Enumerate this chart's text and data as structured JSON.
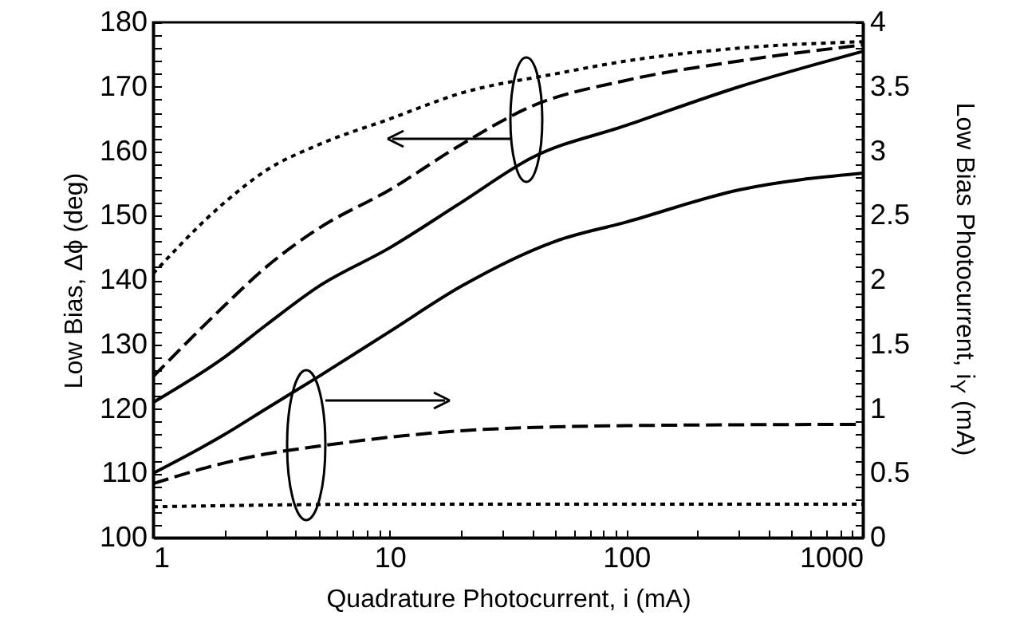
{
  "chart_data": {
    "type": "line",
    "xlabel": "Quadrature Photocurrent, i (mA)",
    "ylabel": "Low Bias, Δϕ (deg)",
    "y2label": "Low Bias Photocurrent, i$_{Y}$ (mA)",
    "log": "x",
    "legend": false,
    "marker": "none",
    "xlim": [
      1,
      1000
    ],
    "xticks": [
      1,
      {
        "value": 2,
        "label": null
      },
      {
        "value": 3,
        "label": null
      },
      {
        "value": 4,
        "label": null
      },
      {
        "value": 5,
        "label": null
      },
      {
        "value": 6,
        "label": null
      },
      {
        "value": 7,
        "label": null
      },
      {
        "value": 8,
        "label": null
      },
      {
        "value": 9,
        "label": null
      },
      10,
      {
        "value": 20,
        "label": null
      },
      {
        "value": 30,
        "label": null
      },
      {
        "value": 40,
        "label": null
      },
      {
        "value": 50,
        "label": null
      },
      {
        "value": 60,
        "label": null
      },
      {
        "value": 70,
        "label": null
      },
      {
        "value": 80,
        "label": null
      },
      {
        "value": 90,
        "label": null
      },
      100,
      {
        "value": 200,
        "label": null
      },
      {
        "value": 300,
        "label": null
      },
      {
        "value": 400,
        "label": null
      },
      {
        "value": 500,
        "label": null
      },
      {
        "value": 600,
        "label": null
      },
      {
        "value": 700,
        "label": null
      },
      {
        "value": 800,
        "label": null
      },
      {
        "value": 900,
        "label": null
      },
      1000
    ],
    "ylim": [
      100,
      180
    ],
    "yticks": [
      100,
      {
        "value": 102,
        "label": null
      },
      {
        "value": 104,
        "label": null
      },
      {
        "value": 106,
        "label": null
      },
      {
        "value": 108,
        "label": null
      },
      110,
      {
        "value": 112,
        "label": null
      },
      {
        "value": 114,
        "label": null
      },
      {
        "value": 116,
        "label": null
      },
      {
        "value": 118,
        "label": null
      },
      120,
      {
        "value": 122,
        "label": null
      },
      {
        "value": 124,
        "label": null
      },
      {
        "value": 126,
        "label": null
      },
      {
        "value": 128,
        "label": null
      },
      130,
      {
        "value": 132,
        "label": null
      },
      {
        "value": 134,
        "label": null
      },
      {
        "value": 136,
        "label": null
      },
      {
        "value": 138,
        "label": null
      },
      140,
      {
        "value": 142,
        "label": null
      },
      {
        "value": 144,
        "label": null
      },
      {
        "value": 146,
        "label": null
      },
      {
        "value": 148,
        "label": null
      },
      150,
      {
        "value": 152,
        "label": null
      },
      {
        "value": 154,
        "label": null
      },
      {
        "value": 156,
        "label": null
      },
      {
        "value": 158,
        "label": null
      },
      160,
      {
        "value": 162,
        "label": null
      },
      {
        "value": 164,
        "label": null
      },
      {
        "value": 166,
        "label": null
      },
      {
        "value": 168,
        "label": null
      },
      170,
      {
        "value": 172,
        "label": null
      },
      {
        "value": 174,
        "label": null
      },
      {
        "value": 176,
        "label": null
      },
      {
        "value": 178,
        "label": null
      },
      180
    ],
    "y2lim": [
      0,
      4
    ],
    "y2ticks": [
      0,
      {
        "value": 0.1,
        "label": null
      },
      {
        "value": 0.2,
        "label": null
      },
      {
        "value": 0.3,
        "label": null
      },
      {
        "value": 0.4,
        "label": null
      },
      0.5,
      {
        "value": 0.6,
        "label": null
      },
      {
        "value": 0.7,
        "label": null
      },
      {
        "value": 0.8,
        "label": null
      },
      {
        "value": 0.9,
        "label": null
      },
      1,
      {
        "value": 1.1,
        "label": null
      },
      {
        "value": 1.2,
        "label": null
      },
      {
        "value": 1.3,
        "label": null
      },
      {
        "value": 1.4,
        "label": null
      },
      1.5,
      {
        "value": 1.6,
        "label": null
      },
      {
        "value": 1.7,
        "label": null
      },
      {
        "value": 1.8,
        "label": null
      },
      {
        "value": 1.9,
        "label": null
      },
      2,
      {
        "value": 2.1,
        "label": null
      },
      {
        "value": 2.2,
        "label": null
      },
      {
        "value": 2.3,
        "label": null
      },
      {
        "value": 2.4,
        "label": null
      },
      2.5,
      {
        "value": 2.6,
        "label": null
      },
      {
        "value": 2.7,
        "label": null
      },
      {
        "value": 2.8,
        "label": null
      },
      {
        "value": 2.9,
        "label": null
      },
      3,
      {
        "value": 3.1,
        "label": null
      },
      {
        "value": 3.2,
        "label": null
      },
      {
        "value": 3.3,
        "label": null
      },
      {
        "value": 3.4,
        "label": null
      },
      3.5,
      {
        "value": 3.6,
        "label": null
      },
      {
        "value": 3.7,
        "label": null
      },
      {
        "value": 3.8,
        "label": null
      },
      {
        "value": 3.9,
        "label": null
      },
      4
    ],
    "series": [
      {
        "color": "#000000",
        "line_style": "dotted",
        "x": [
          1,
          2,
          3,
          5,
          10,
          20,
          50,
          100,
          300,
          1000
        ],
        "values": [
          141,
          152,
          157,
          161,
          165,
          169,
          172,
          174,
          176,
          177
        ]
      },
      {
        "color": "#000000",
        "line_style": "dashed",
        "x": [
          1,
          2,
          3,
          5,
          10,
          20,
          40,
          100,
          300,
          1000
        ],
        "values": [
          125,
          136,
          142,
          148,
          154,
          161,
          167,
          171,
          174,
          176.5
        ]
      },
      {
        "color": "#000000",
        "line_style": "solid",
        "x": [
          1,
          2,
          3,
          5,
          10,
          20,
          40,
          100,
          300,
          1000
        ],
        "values": [
          121,
          128,
          133,
          139,
          145,
          152,
          159,
          164,
          170,
          175.5
        ]
      },
      {
        "color": "#000000",
        "line_style": "solid",
        "axis": "y2",
        "x": [
          1,
          2,
          3,
          5,
          10,
          20,
          50,
          100,
          300,
          1000
        ],
        "values": [
          0.5,
          0.8,
          1.0,
          1.25,
          1.6,
          1.95,
          2.3,
          2.45,
          2.7,
          2.83
        ]
      },
      {
        "color": "#000000",
        "line_style": "dashed",
        "axis": "y2",
        "x": [
          1,
          2,
          3,
          5,
          10,
          20,
          50,
          100,
          1000
        ],
        "values": [
          0.42,
          0.58,
          0.65,
          0.71,
          0.78,
          0.83,
          0.86,
          0.87,
          0.88
        ]
      },
      {
        "color": "#000000",
        "line_style": "dotted",
        "axis": "y2",
        "x": [
          1,
          10,
          1000
        ],
        "values": [
          0.24,
          0.26,
          0.26
        ]
      }
    ]
  }
}
